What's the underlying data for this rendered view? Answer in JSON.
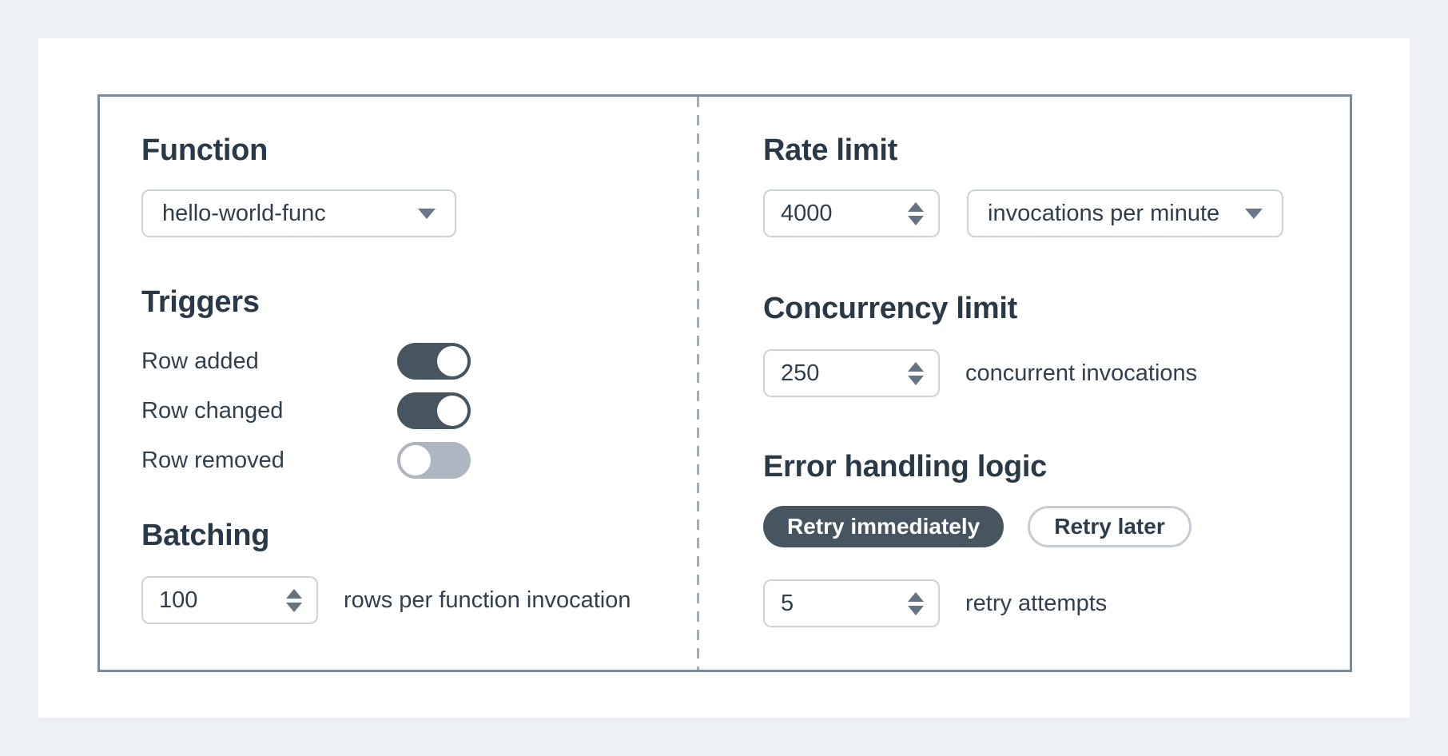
{
  "left": {
    "function": {
      "heading": "Function",
      "selected": "hello-world-func"
    },
    "triggers": {
      "heading": "Triggers",
      "items": [
        {
          "label": "Row added",
          "on": true
        },
        {
          "label": "Row changed",
          "on": true
        },
        {
          "label": "Row removed",
          "on": false
        }
      ]
    },
    "batching": {
      "heading": "Batching",
      "value": "100",
      "suffix": "rows per function invocation"
    }
  },
  "right": {
    "rate_limit": {
      "heading": "Rate limit",
      "value": "4000",
      "unit_selected": "invocations per minute"
    },
    "concurrency": {
      "heading": "Concurrency limit",
      "value": "250",
      "suffix": "concurrent invocations"
    },
    "error_handling": {
      "heading": "Error handling logic",
      "options": [
        {
          "label": "Retry immediately",
          "selected": true
        },
        {
          "label": "Retry later",
          "selected": false
        }
      ],
      "retry_value": "5",
      "retry_suffix": "retry attempts"
    }
  },
  "colors": {
    "page_background": "#edf1f5",
    "card_background": "#ffffff",
    "panel_border": "#7a8a99",
    "divider_dash": "#a3adb8",
    "heading_text": "#2a3947",
    "body_text": "#30404e",
    "input_border": "#cbd3da",
    "toggle_on": "#475561",
    "toggle_off": "#aeb7c1",
    "pill_selected_bg": "#475561",
    "pill_selected_text": "#ffffff",
    "pill_unselected_border": "#c5ccd4",
    "arrow_icon": "#68778a"
  }
}
